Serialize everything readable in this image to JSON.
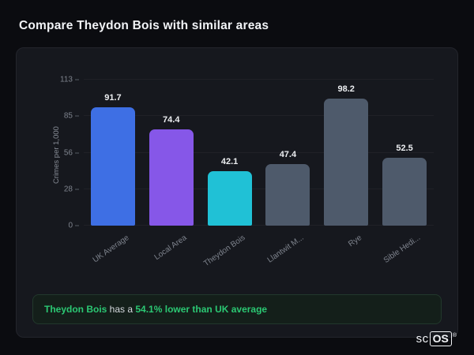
{
  "page": {
    "title": "Compare Theydon Bois with similar areas"
  },
  "chart_data": {
    "type": "bar",
    "categories": [
      "UK Average",
      "Local Area",
      "Theydon Bois",
      "Llantwit M...",
      "Rye",
      "Sible Hedi..."
    ],
    "values": [
      91.7,
      74.4,
      42.1,
      47.4,
      98.2,
      52.5
    ],
    "bar_colors": [
      "#3e6fe4",
      "#8657e8",
      "#20c1d6",
      "#4e5a6b",
      "#4e5a6b",
      "#4e5a6b"
    ],
    "title": "",
    "xlabel": "",
    "ylabel": "Crimes per 1,000",
    "yticks": [
      0,
      28,
      56,
      85,
      113
    ],
    "ylim": [
      0,
      113
    ],
    "grid": false,
    "legend": "none"
  },
  "callout": {
    "highlight": "Theydon Bois",
    "middle": " has a ",
    "stat": "54.1% lower than UK average"
  },
  "logo": {
    "prefix": "sc",
    "box": "OS",
    "reg": "®"
  },
  "colors": {
    "page_bg": "#0b0c10",
    "card_bg": "#16181e",
    "accent_green": "#2bc873"
  }
}
